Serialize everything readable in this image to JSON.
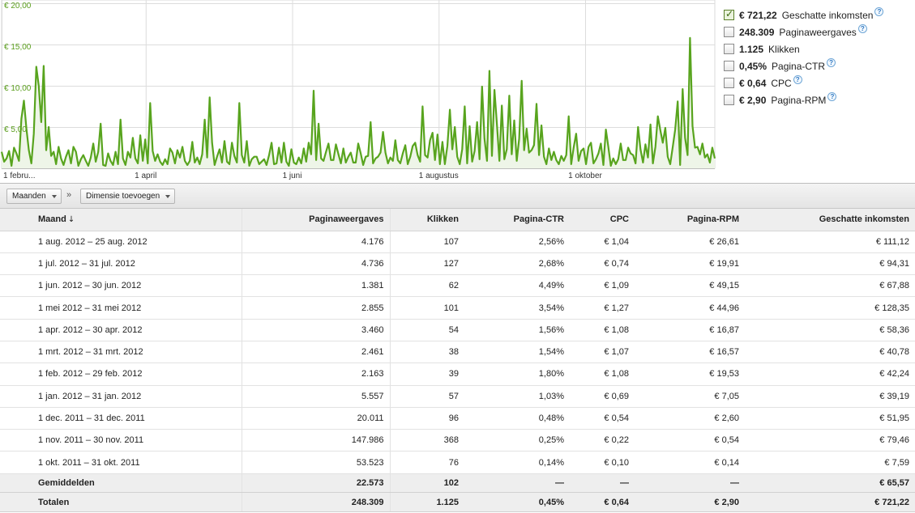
{
  "chart_data": {
    "type": "area",
    "y_ticks": [
      "€ 5,00",
      "€ 10,00",
      "€ 15,00",
      "€ 20,00"
    ],
    "y_tick_values": [
      5,
      10,
      15,
      20
    ],
    "ylim": [
      0,
      20
    ],
    "x_ticks": [
      "1 febru...",
      "1 april",
      "1 juni",
      "1 augustus",
      "1 oktober"
    ],
    "x_tick_days": [
      0,
      60,
      121,
      182,
      243
    ],
    "xlim_days": [
      0,
      297
    ],
    "grid": true,
    "series": [
      {
        "color": "#58a41e",
        "values": [
          2.0,
          0.8,
          1.2,
          2.1,
          0.3,
          2.5,
          1.8,
          0.9,
          6.0,
          8.2,
          4.8,
          2.2,
          0.6,
          4.2,
          12.3,
          10.0,
          5.6,
          12.4,
          2.2,
          5.0,
          1.5,
          2.0,
          0.5,
          2.6,
          1.2,
          0.4,
          1.4,
          2.2,
          0.6,
          2.6,
          2.0,
          0.3,
          1.1,
          1.6,
          0.9,
          0.3,
          1.3,
          3.0,
          0.8,
          2.0,
          5.4,
          0.4,
          0.3,
          1.8,
          0.9,
          0.4,
          2.0,
          0.5,
          5.9,
          1.2,
          0.4,
          2.0,
          1.3,
          3.7,
          1.2,
          0.6,
          4.0,
          0.9,
          3.5,
          0.6,
          7.9,
          2.1,
          0.9,
          1.7,
          0.8,
          0.4,
          1.1,
          0.5,
          2.4,
          1.9,
          0.6,
          2.2,
          1.3,
          2.6,
          0.9,
          0.4,
          0.9,
          3.2,
          0.7,
          1.3,
          0.5,
          1.7,
          5.9,
          1.3,
          8.6,
          3.1,
          0.4,
          1.4,
          2.3,
          0.7,
          3.3,
          0.8,
          0.5,
          3.1,
          1.5,
          0.7,
          7.9,
          1.6,
          0.7,
          3.3,
          0.3,
          1.1,
          1.4,
          1.4,
          0.5,
          0.8,
          1.1,
          0.4,
          1.6,
          3.1,
          0.5,
          0.6,
          2.5,
          0.7,
          3.1,
          0.8,
          0.3,
          2.3,
          0.7,
          0.5,
          1.3,
          0.6,
          2.4,
          0.8,
          3.1,
          1.7,
          9.4,
          1.0,
          5.4,
          1.2,
          0.9,
          2.0,
          3.0,
          1.0,
          1.0,
          2.9,
          1.7,
          0.6,
          2.4,
          0.7,
          1.4,
          1.9,
          0.7,
          0.7,
          3.0,
          1.8,
          0.4,
          1.4,
          1.5,
          5.6,
          0.6,
          1.2,
          1.4,
          1.9,
          4.4,
          1.9,
          0.6,
          1.3,
          0.9,
          3.4,
          1.0,
          0.6,
          1.8,
          2.8,
          0.5,
          1.4,
          2.7,
          3.1,
          1.6,
          0.8,
          7.5,
          1.6,
          1.3,
          3.4,
          4.3,
          1.0,
          4.1,
          0.5,
          3.2,
          0.5,
          2.7,
          7.1,
          2.3,
          5.0,
          1.4,
          0.5,
          2.3,
          7.5,
          0.6,
          5.1,
          0.8,
          2.1,
          5.6,
          1.1,
          9.9,
          3.6,
          0.9,
          11.8,
          1.5,
          9.5,
          5.4,
          0.9,
          7.6,
          1.1,
          2.3,
          8.8,
          1.7,
          5.8,
          0.9,
          3.6,
          10.6,
          2.2,
          4.8,
          1.9,
          2.2,
          2.8,
          7.8,
          1.6,
          5.2,
          1.4,
          0.5,
          2.4,
          1.0,
          2.0,
          1.0,
          0.5,
          1.5,
          0.9,
          1.6,
          6.3,
          0.5,
          2.5,
          4.2,
          0.9,
          2.1,
          2.4,
          0.5,
          2.6,
          3.1,
          0.6,
          1.1,
          1.8,
          3.0,
          0.4,
          4.7,
          2.6,
          0.3,
          1.2,
          0.5,
          1.1,
          3.0,
          1.0,
          1.0,
          2.5,
          1.8,
          1.6,
          0.6,
          5.0,
          2.3,
          0.7,
          2.9,
          1.3,
          5.3,
          0.6,
          2.6,
          6.3,
          4.6,
          3.1,
          4.9,
          1.4,
          0.5,
          2.6,
          4.7,
          8.1,
          0.4,
          9.6,
          3.7,
          1.6,
          15.8,
          5.1,
          2.5,
          2.6,
          1.7,
          3.0,
          1.3,
          1.7,
          0.7,
          2.5,
          1.2
        ]
      }
    ]
  },
  "metrics": [
    {
      "value": "€ 721,22",
      "label": "Geschatte inkomsten",
      "checked": true
    },
    {
      "value": "248.309",
      "label": "Paginaweergaves",
      "checked": false
    },
    {
      "value": "1.125",
      "label": "Klikken",
      "checked": false
    },
    {
      "value": "0,45%",
      "label": "Pagina-CTR",
      "checked": false
    },
    {
      "value": "€ 0,64",
      "label": "CPC",
      "checked": false
    },
    {
      "value": "€ 2,90",
      "label": "Pagina-RPM",
      "checked": false
    }
  ],
  "help_glyph": "?",
  "toolbar": {
    "period_label": "Maanden",
    "separator": "»",
    "add_dimension_label": "Dimensie toevoegen"
  },
  "table": {
    "sort_arrow": "↓",
    "columns": [
      "Maand",
      "Paginaweergaves",
      "Klikken",
      "Pagina-CTR",
      "CPC",
      "Pagina-RPM",
      "Geschatte inkomsten"
    ],
    "rows": [
      [
        "1 aug. 2012 – 25 aug. 2012",
        "4.176",
        "107",
        "2,56%",
        "€ 1,04",
        "€ 26,61",
        "€ 111,12"
      ],
      [
        "1 jul. 2012 – 31 jul. 2012",
        "4.736",
        "127",
        "2,68%",
        "€ 0,74",
        "€ 19,91",
        "€ 94,31"
      ],
      [
        "1 jun. 2012 – 30 jun. 2012",
        "1.381",
        "62",
        "4,49%",
        "€ 1,09",
        "€ 49,15",
        "€ 67,88"
      ],
      [
        "1 mei 2012 – 31 mei 2012",
        "2.855",
        "101",
        "3,54%",
        "€ 1,27",
        "€ 44,96",
        "€ 128,35"
      ],
      [
        "1 apr. 2012 – 30 apr. 2012",
        "3.460",
        "54",
        "1,56%",
        "€ 1,08",
        "€ 16,87",
        "€ 58,36"
      ],
      [
        "1 mrt. 2012 – 31 mrt. 2012",
        "2.461",
        "38",
        "1,54%",
        "€ 1,07",
        "€ 16,57",
        "€ 40,78"
      ],
      [
        "1 feb. 2012 – 29 feb. 2012",
        "2.163",
        "39",
        "1,80%",
        "€ 1,08",
        "€ 19,53",
        "€ 42,24"
      ],
      [
        "1 jan. 2012 – 31 jan. 2012",
        "5.557",
        "57",
        "1,03%",
        "€ 0,69",
        "€ 7,05",
        "€ 39,19"
      ],
      [
        "1 dec. 2011 – 31 dec. 2011",
        "20.011",
        "96",
        "0,48%",
        "€ 0,54",
        "€ 2,60",
        "€ 51,95"
      ],
      [
        "1 nov. 2011 – 30 nov. 2011",
        "147.986",
        "368",
        "0,25%",
        "€ 0,22",
        "€ 0,54",
        "€ 79,46"
      ],
      [
        "1 okt. 2011 – 31 okt. 2011",
        "53.523",
        "76",
        "0,14%",
        "€ 0,10",
        "€ 0,14",
        "€ 7,59"
      ]
    ],
    "averages": [
      "Gemiddelden",
      "22.573",
      "102",
      "—",
      "—",
      "—",
      "€ 65,57"
    ],
    "totals": [
      "Totalen",
      "248.309",
      "1.125",
      "0,45%",
      "€ 0,64",
      "€ 2,90",
      "€ 721,22"
    ]
  }
}
